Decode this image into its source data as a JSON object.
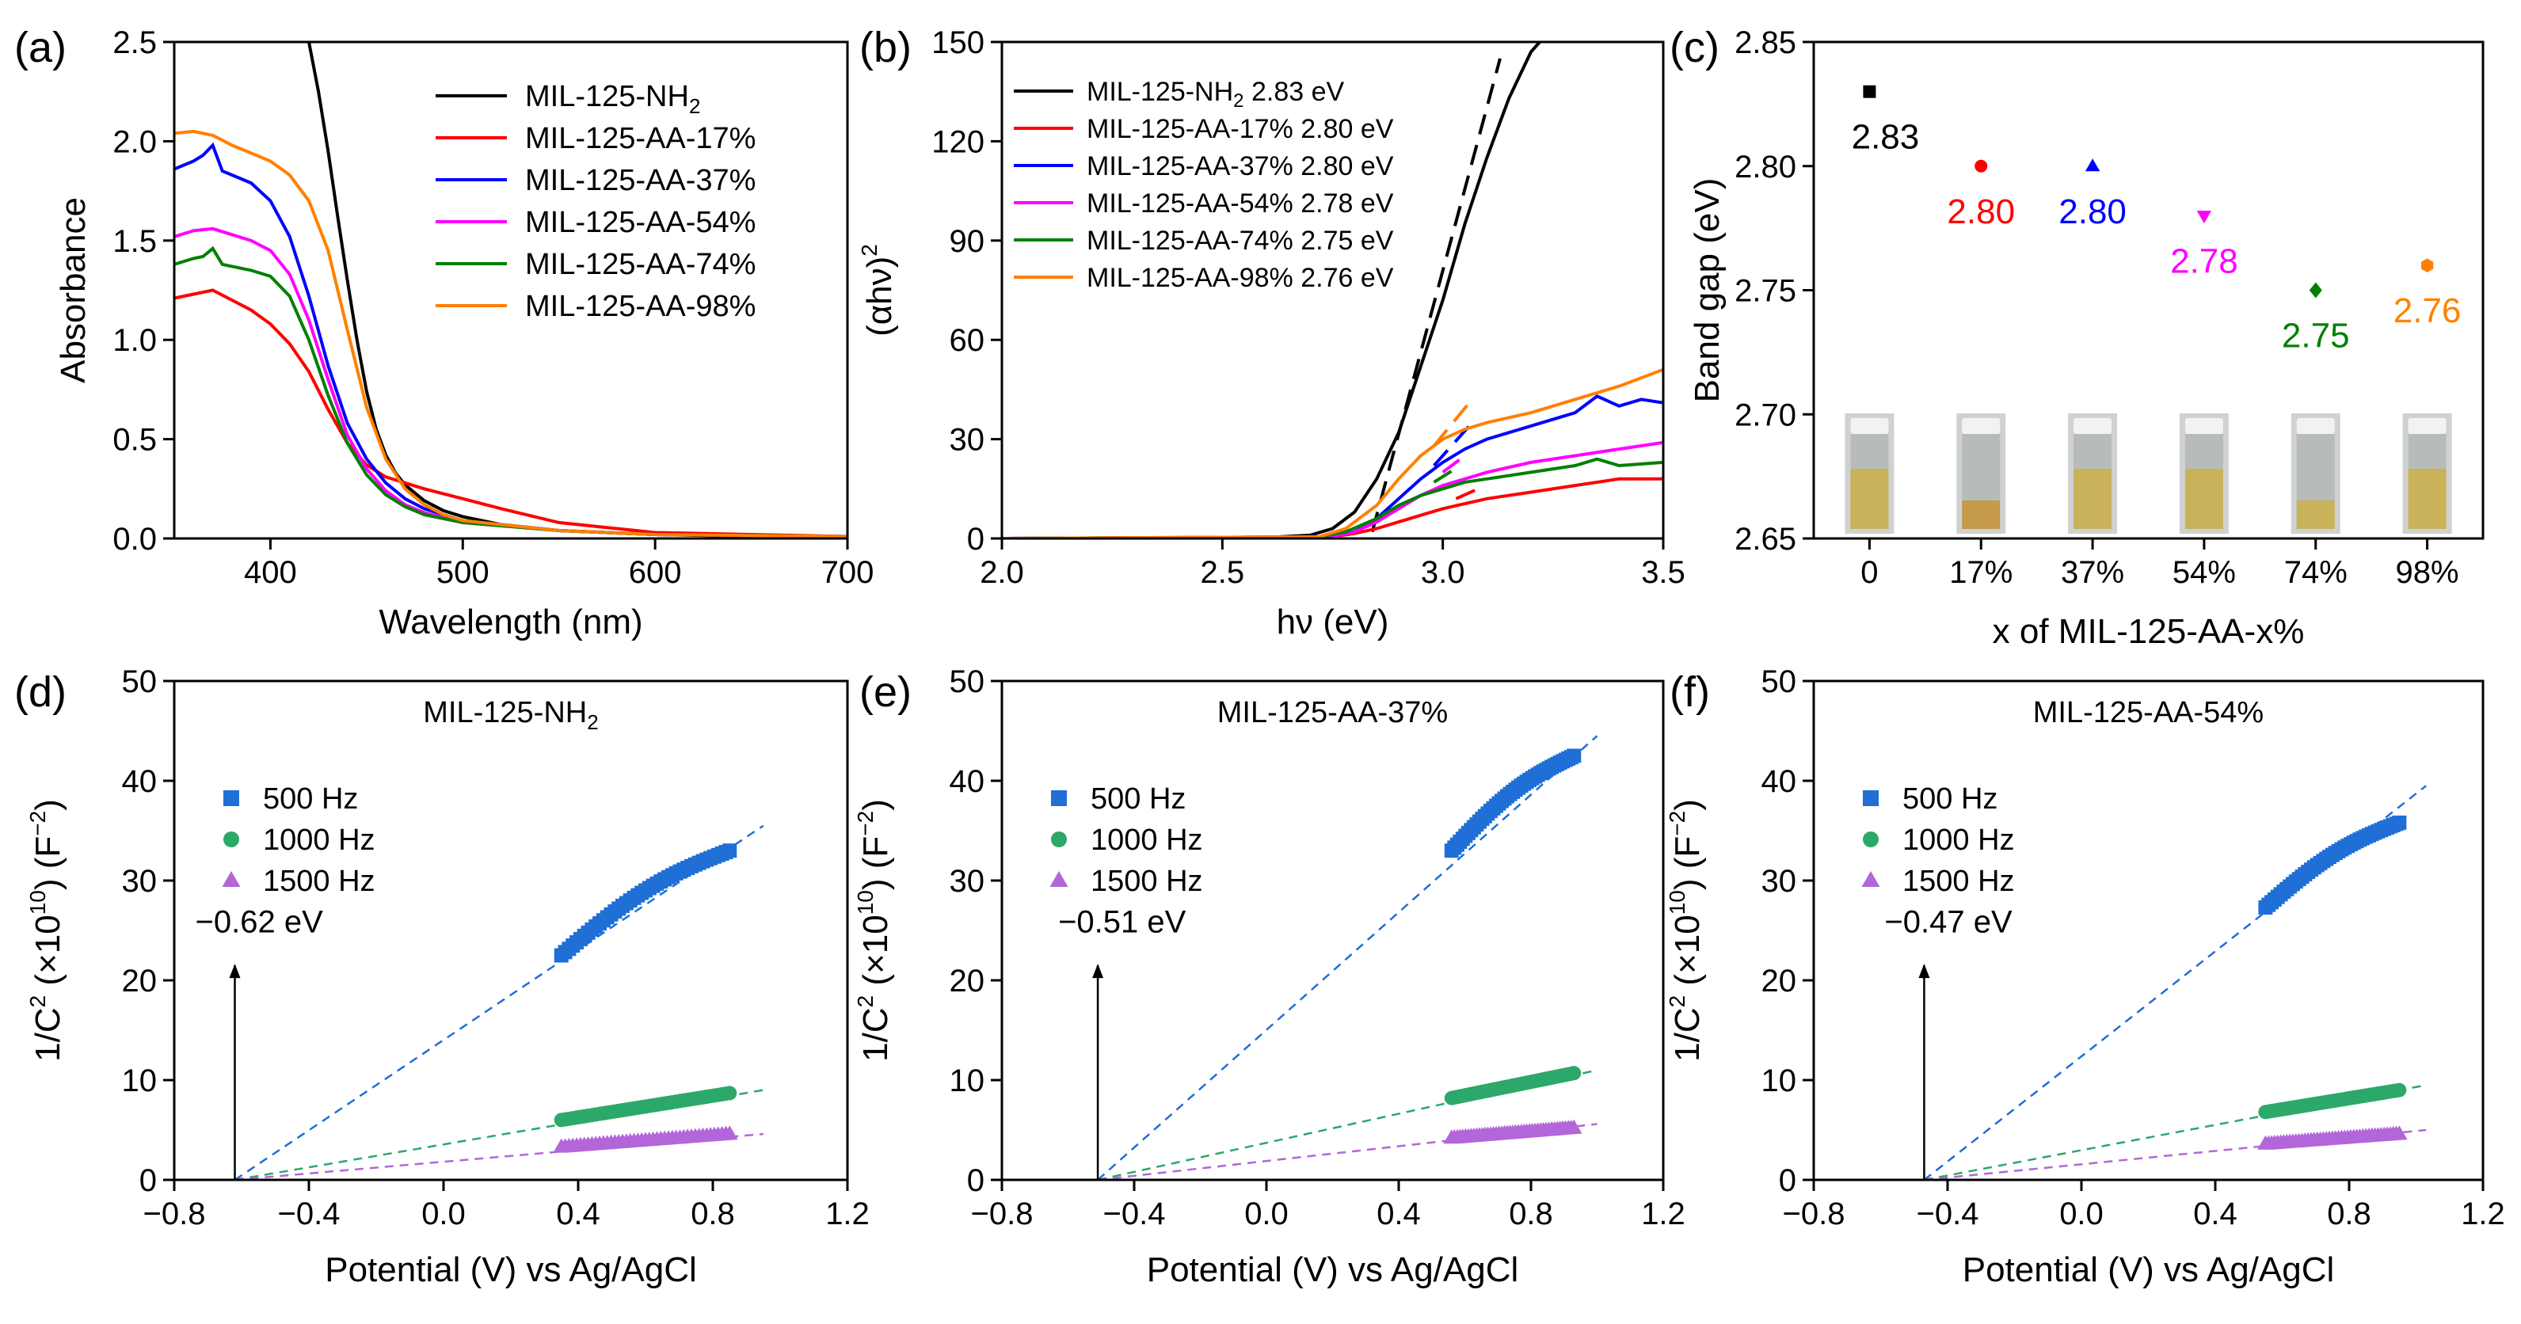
{
  "chart_data": [
    {
      "panel": "(a)",
      "type": "line",
      "xlabel": "Wavelength (nm)",
      "ylabel": "Absorbance",
      "xlim": [
        350,
        700
      ],
      "ylim": [
        0.0,
        2.5
      ],
      "xticks": [
        400,
        500,
        600,
        700
      ],
      "xtick_labels": [
        "400",
        "500",
        "600",
        "700"
      ],
      "yticks": [
        0.0,
        0.5,
        1.0,
        1.5,
        2.0,
        2.5
      ],
      "ytick_labels": [
        "0.0",
        "0.5",
        "1.0",
        "1.5",
        "2.0",
        "2.5"
      ],
      "legend_position": "top-right",
      "series": [
        {
          "name": "MIL-125-NH2",
          "label_main": "MIL-125-NH",
          "label_sub": "2",
          "color": "#000000",
          "x": [
            420,
            425,
            430,
            435,
            440,
            445,
            450,
            455,
            460,
            465,
            470,
            480,
            490,
            500,
            520,
            550,
            600,
            650,
            700
          ],
          "y": [
            2.5,
            2.25,
            1.95,
            1.62,
            1.3,
            1.0,
            0.74,
            0.55,
            0.42,
            0.33,
            0.27,
            0.19,
            0.14,
            0.11,
            0.07,
            0.04,
            0.02,
            0.01,
            0.01
          ]
        },
        {
          "name": "MIL-125-AA-17%",
          "color": "#ff0000",
          "x": [
            350,
            360,
            370,
            380,
            390,
            400,
            410,
            420,
            430,
            440,
            450,
            460,
            470,
            480,
            500,
            520,
            550,
            600,
            650,
            700
          ],
          "y": [
            1.21,
            1.23,
            1.25,
            1.2,
            1.15,
            1.08,
            0.98,
            0.84,
            0.65,
            0.48,
            0.37,
            0.31,
            0.28,
            0.25,
            0.2,
            0.15,
            0.08,
            0.03,
            0.02,
            0.01
          ]
        },
        {
          "name": "MIL-125-AA-37%",
          "color": "#0000ff",
          "x": [
            350,
            360,
            365,
            370,
            375,
            380,
            390,
            400,
            410,
            420,
            430,
            440,
            450,
            460,
            470,
            480,
            500,
            550,
            600,
            700
          ],
          "y": [
            1.86,
            1.9,
            1.93,
            1.98,
            1.85,
            1.83,
            1.79,
            1.7,
            1.52,
            1.22,
            0.87,
            0.58,
            0.4,
            0.28,
            0.2,
            0.15,
            0.09,
            0.04,
            0.02,
            0.01
          ]
        },
        {
          "name": "MIL-125-AA-54%",
          "color": "#ff00ff",
          "x": [
            350,
            360,
            370,
            380,
            390,
            400,
            410,
            420,
            430,
            440,
            450,
            460,
            470,
            480,
            500,
            550,
            600,
            700
          ],
          "y": [
            1.52,
            1.55,
            1.56,
            1.53,
            1.5,
            1.45,
            1.33,
            1.1,
            0.8,
            0.52,
            0.35,
            0.24,
            0.17,
            0.13,
            0.08,
            0.04,
            0.02,
            0.01
          ]
        },
        {
          "name": "MIL-125-AA-74%",
          "color": "#008000",
          "x": [
            350,
            360,
            365,
            370,
            375,
            380,
            390,
            400,
            410,
            420,
            430,
            440,
            450,
            460,
            470,
            480,
            500,
            550,
            600,
            700
          ],
          "y": [
            1.38,
            1.41,
            1.42,
            1.46,
            1.38,
            1.37,
            1.35,
            1.32,
            1.22,
            1.0,
            0.72,
            0.48,
            0.32,
            0.22,
            0.16,
            0.12,
            0.08,
            0.04,
            0.02,
            0.01
          ]
        },
        {
          "name": "MIL-125-AA-98%",
          "color": "#ff8000",
          "x": [
            350,
            360,
            370,
            380,
            390,
            400,
            410,
            420,
            430,
            440,
            450,
            460,
            470,
            480,
            490,
            500,
            550,
            600,
            700
          ],
          "y": [
            2.04,
            2.05,
            2.03,
            1.98,
            1.94,
            1.9,
            1.83,
            1.7,
            1.45,
            1.05,
            0.66,
            0.4,
            0.25,
            0.17,
            0.12,
            0.09,
            0.04,
            0.02,
            0.01
          ]
        }
      ]
    },
    {
      "panel": "(b)",
      "type": "line",
      "xlabel": "hν (eV)",
      "ylabel_main": "(αhν)",
      "ylabel_sup": "2",
      "xlim": [
        2.0,
        3.5
      ],
      "ylim": [
        0,
        150
      ],
      "xticks": [
        2.0,
        2.5,
        3.0,
        3.5
      ],
      "xtick_labels": [
        "2.0",
        "2.5",
        "3.0",
        "3.5"
      ],
      "yticks": [
        0,
        30,
        60,
        90,
        120,
        150
      ],
      "ytick_labels": [
        "0",
        "30",
        "60",
        "90",
        "120",
        "150"
      ],
      "legend_position": "top-left",
      "series": [
        {
          "name": "MIL-125-NH2 2.83 eV",
          "label_main": "MIL-125-NH",
          "label_sub": "2",
          "label_tail": " 2.83 eV",
          "color": "#000000",
          "x": [
            2.0,
            2.6,
            2.7,
            2.75,
            2.8,
            2.85,
            2.9,
            2.95,
            3.0,
            3.05,
            3.1,
            3.15,
            3.2,
            3.22
          ],
          "y": [
            0,
            0.3,
            1,
            3,
            8,
            18,
            32,
            52,
            72,
            95,
            115,
            133,
            147,
            150
          ],
          "tangent": {
            "x": [
              2.84,
              3.13
            ],
            "y": [
              2,
              145
            ]
          }
        },
        {
          "name": "MIL-125-AA-17% 2.80 eV",
          "color": "#ff0000",
          "x": [
            2.0,
            2.75,
            2.8,
            2.85,
            2.9,
            2.95,
            3.0,
            3.05,
            3.1,
            3.2,
            3.3,
            3.4,
            3.5
          ],
          "y": [
            0,
            0.5,
            1.5,
            3,
            5,
            7,
            9,
            10.5,
            12,
            14,
            16,
            18,
            18
          ],
          "tangent": {
            "x": [
              3.03,
              3.08
            ],
            "y": [
              12,
              15
            ]
          }
        },
        {
          "name": "MIL-125-AA-37% 2.80 eV",
          "color": "#0000ff",
          "x": [
            2.0,
            2.75,
            2.8,
            2.85,
            2.9,
            2.95,
            3.0,
            3.05,
            3.1,
            3.2,
            3.3,
            3.35,
            3.4,
            3.45,
            3.5
          ],
          "y": [
            0,
            0.5,
            2,
            6,
            12,
            18,
            23,
            27,
            30,
            34,
            38,
            43,
            40,
            42,
            41
          ],
          "tangent": {
            "x": [
              2.98,
              3.06
            ],
            "y": [
              22,
              34
            ]
          }
        },
        {
          "name": "MIL-125-AA-54% 2.78 eV",
          "color": "#ff00ff",
          "x": [
            2.0,
            2.75,
            2.8,
            2.85,
            2.9,
            2.95,
            3.0,
            3.05,
            3.1,
            3.2,
            3.3,
            3.4,
            3.5
          ],
          "y": [
            0,
            0.5,
            2,
            5,
            9,
            13,
            16,
            18,
            20,
            23,
            25,
            27,
            29
          ],
          "tangent": {
            "x": [
              3.0,
              3.05
            ],
            "y": [
              20,
              25
            ]
          }
        },
        {
          "name": "MIL-125-AA-74% 2.75 eV",
          "color": "#008000",
          "x": [
            2.0,
            2.72,
            2.78,
            2.85,
            2.9,
            2.95,
            3.0,
            3.05,
            3.1,
            3.2,
            3.3,
            3.35,
            3.4,
            3.5
          ],
          "y": [
            0,
            0.5,
            2,
            6,
            10,
            13,
            15,
            17,
            18,
            20,
            22,
            24,
            22,
            23
          ],
          "tangent": {
            "x": [
              2.98,
              3.04
            ],
            "y": [
              17,
              22
            ]
          }
        },
        {
          "name": "MIL-125-AA-98% 2.76 eV",
          "color": "#ff8000",
          "x": [
            2.0,
            2.72,
            2.78,
            2.85,
            2.9,
            2.95,
            3.0,
            3.05,
            3.1,
            3.2,
            3.3,
            3.4,
            3.5
          ],
          "y": [
            0,
            0.5,
            3,
            10,
            18,
            25,
            30,
            33,
            35,
            38,
            42,
            46,
            51
          ],
          "tangent": {
            "x": [
              2.98,
              3.06
            ],
            "y": [
              28,
              41
            ]
          }
        }
      ]
    },
    {
      "panel": "(c)",
      "type": "scatter",
      "xlabel": "x of MIL-125-AA-x%",
      "ylabel": "Band gap (eV)",
      "ylim": [
        2.65,
        2.85
      ],
      "yticks": [
        2.65,
        2.7,
        2.75,
        2.8,
        2.85
      ],
      "ytick_labels": [
        "2.65",
        "2.70",
        "2.75",
        "2.80",
        "2.85"
      ],
      "categories": [
        "0",
        "17%",
        "37%",
        "54%",
        "74%",
        "98%"
      ],
      "values": [
        2.83,
        2.8,
        2.8,
        2.78,
        2.75,
        2.76
      ],
      "value_labels": [
        "2.83",
        "2.80",
        "2.80",
        "2.78",
        "2.75",
        "2.76"
      ],
      "markers": [
        "square",
        "circle",
        "triangle-up",
        "triangle-down",
        "diamond",
        "hexagon"
      ],
      "colors": [
        "#000000",
        "#ff0000",
        "#0000ff",
        "#ff00ff",
        "#008000",
        "#ff8000"
      ],
      "vial_photos": 6
    },
    {
      "panel": "(d)",
      "type": "scatter",
      "title_main": "MIL-125-NH",
      "title_sub": "2",
      "xlabel": "Potential (V) vs Ag/AgCl",
      "ylabel": "1/C2 (×1010) (F−2)",
      "xlim": [
        -0.8,
        1.2
      ],
      "ylim": [
        0,
        50
      ],
      "xticks": [
        -0.8,
        -0.4,
        0.0,
        0.4,
        0.8,
        1.2
      ],
      "xtick_labels": [
        "−0.8",
        "−0.4",
        "0.0",
        "0.4",
        "0.8",
        "1.2"
      ],
      "yticks": [
        0,
        10,
        20,
        30,
        40,
        50
      ],
      "ytick_labels": [
        "0",
        "10",
        "20",
        "30",
        "40",
        "50"
      ],
      "flat_band_label": "−0.62 eV",
      "flat_band": -0.62,
      "legend_position": "top-left",
      "series": [
        {
          "name": "500 Hz",
          "marker": "square",
          "color": "#1f6fd6",
          "x_start": 0.35,
          "x_end": 0.85,
          "y_start": 22.5,
          "y_end": 33,
          "fit_end": [
            0.95,
            35.5
          ]
        },
        {
          "name": "1000 Hz",
          "marker": "circle",
          "color": "#2ca86a",
          "x_start": 0.35,
          "x_end": 0.85,
          "y_start": 6.0,
          "y_end": 8.7,
          "fit_end": [
            0.95,
            9.0
          ]
        },
        {
          "name": "1500 Hz",
          "marker": "triangle-up",
          "color": "#b266d9",
          "x_start": 0.35,
          "x_end": 0.85,
          "y_start": 3.3,
          "y_end": 4.6,
          "fit_end": [
            0.95,
            4.6
          ]
        }
      ]
    },
    {
      "panel": "(e)",
      "type": "scatter",
      "title_main": "MIL-125-AA-37%",
      "title_sub": "",
      "xlabel": "Potential (V) vs Ag/AgCl",
      "ylabel": "1/C2 (×1010) (F−2)",
      "xlim": [
        -0.8,
        1.2
      ],
      "ylim": [
        0,
        50
      ],
      "xticks": [
        -0.8,
        -0.4,
        0.0,
        0.4,
        0.8,
        1.2
      ],
      "xtick_labels": [
        "−0.8",
        "−0.4",
        "0.0",
        "0.4",
        "0.8",
        "1.2"
      ],
      "yticks": [
        0,
        10,
        20,
        30,
        40,
        50
      ],
      "ytick_labels": [
        "0",
        "10",
        "20",
        "30",
        "40",
        "50"
      ],
      "flat_band_label": "−0.51 eV",
      "flat_band": -0.51,
      "legend_position": "top-left",
      "series": [
        {
          "name": "500 Hz",
          "marker": "square",
          "color": "#1f6fd6",
          "x_start": 0.56,
          "x_end": 0.93,
          "y_start": 33,
          "y_end": 42.5,
          "fit_end": [
            1.0,
            44.5
          ]
        },
        {
          "name": "1000 Hz",
          "marker": "circle",
          "color": "#2ca86a",
          "x_start": 0.56,
          "x_end": 0.93,
          "y_start": 8.2,
          "y_end": 10.7,
          "fit_end": [
            1.0,
            11.0
          ]
        },
        {
          "name": "1500 Hz",
          "marker": "triangle-up",
          "color": "#b266d9",
          "x_start": 0.56,
          "x_end": 0.93,
          "y_start": 4.2,
          "y_end": 5.2,
          "fit_end": [
            1.0,
            5.6
          ]
        }
      ]
    },
    {
      "panel": "(f)",
      "type": "scatter",
      "title_main": "MIL-125-AA-54%",
      "title_sub": "",
      "xlabel": "Potential (V) vs Ag/AgCl",
      "ylabel": "1/C2 (×1010) (F−2)",
      "xlim": [
        -0.8,
        1.2
      ],
      "ylim": [
        0,
        50
      ],
      "xticks": [
        -0.8,
        -0.4,
        0.0,
        0.4,
        0.8,
        1.2
      ],
      "xtick_labels": [
        "−0.8",
        "−0.4",
        "0.0",
        "0.4",
        "0.8",
        "1.2"
      ],
      "yticks": [
        0,
        10,
        20,
        30,
        40,
        50
      ],
      "ytick_labels": [
        "0",
        "10",
        "20",
        "30",
        "40",
        "50"
      ],
      "flat_band_label": "−0.47 eV",
      "flat_band": -0.47,
      "legend_position": "top-left",
      "series": [
        {
          "name": "500 Hz",
          "marker": "square",
          "color": "#1f6fd6",
          "x_start": 0.55,
          "x_end": 0.95,
          "y_start": 27.3,
          "y_end": 35.8,
          "fit_end": [
            1.03,
            39.5
          ]
        },
        {
          "name": "1000 Hz",
          "marker": "circle",
          "color": "#2ca86a",
          "x_start": 0.55,
          "x_end": 0.95,
          "y_start": 6.8,
          "y_end": 9.0,
          "fit_end": [
            1.03,
            9.5
          ]
        },
        {
          "name": "1500 Hz",
          "marker": "triangle-up",
          "color": "#b266d9",
          "x_start": 0.55,
          "x_end": 0.95,
          "y_start": 3.6,
          "y_end": 4.6,
          "fit_end": [
            1.03,
            5.0
          ]
        }
      ]
    }
  ],
  "labels": {
    "mott_ylabel_a": "1/C",
    "mott_ylabel_sup1": "2",
    "mott_ylabel_b": " (×10",
    "mott_ylabel_sup2": "10",
    "mott_ylabel_c": ") (F",
    "mott_ylabel_sup3": "−2",
    "mott_ylabel_d": ")"
  }
}
